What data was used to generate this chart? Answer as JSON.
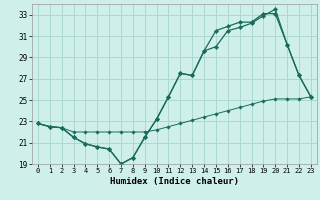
{
  "xlabel": "Humidex (Indice chaleur)",
  "background_color": "#cff0ea",
  "grid_color": "#aad8d0",
  "line_color": "#1a6b5a",
  "x_values": [
    0,
    1,
    2,
    3,
    4,
    5,
    6,
    7,
    8,
    9,
    10,
    11,
    12,
    13,
    14,
    15,
    16,
    17,
    18,
    19,
    20,
    21,
    22,
    23
  ],
  "line1": [
    22.8,
    22.5,
    22.4,
    21.5,
    20.9,
    20.6,
    20.4,
    19.0,
    19.6,
    21.5,
    23.2,
    25.3,
    27.5,
    27.3,
    29.6,
    30.0,
    31.5,
    31.8,
    32.2,
    32.9,
    33.5,
    30.2,
    27.3,
    25.3
  ],
  "line2": [
    22.8,
    22.5,
    22.4,
    21.5,
    20.9,
    20.6,
    20.4,
    19.0,
    19.6,
    21.5,
    23.2,
    25.3,
    27.5,
    27.3,
    29.6,
    31.5,
    31.9,
    32.3,
    32.3,
    33.1,
    33.1,
    30.2,
    27.3,
    25.3
  ],
  "line3": [
    22.8,
    22.5,
    22.4,
    22.0,
    22.0,
    22.0,
    22.0,
    22.0,
    22.0,
    22.0,
    22.2,
    22.5,
    22.8,
    23.1,
    23.4,
    23.7,
    24.0,
    24.3,
    24.6,
    24.9,
    25.1,
    25.1,
    25.1,
    25.3
  ],
  "ylim": [
    19,
    34
  ],
  "yticks": [
    19,
    21,
    23,
    25,
    27,
    29,
    31,
    33
  ],
  "xticks": [
    0,
    1,
    2,
    3,
    4,
    5,
    6,
    7,
    8,
    9,
    10,
    11,
    12,
    13,
    14,
    15,
    16,
    17,
    18,
    19,
    20,
    21,
    22,
    23
  ]
}
